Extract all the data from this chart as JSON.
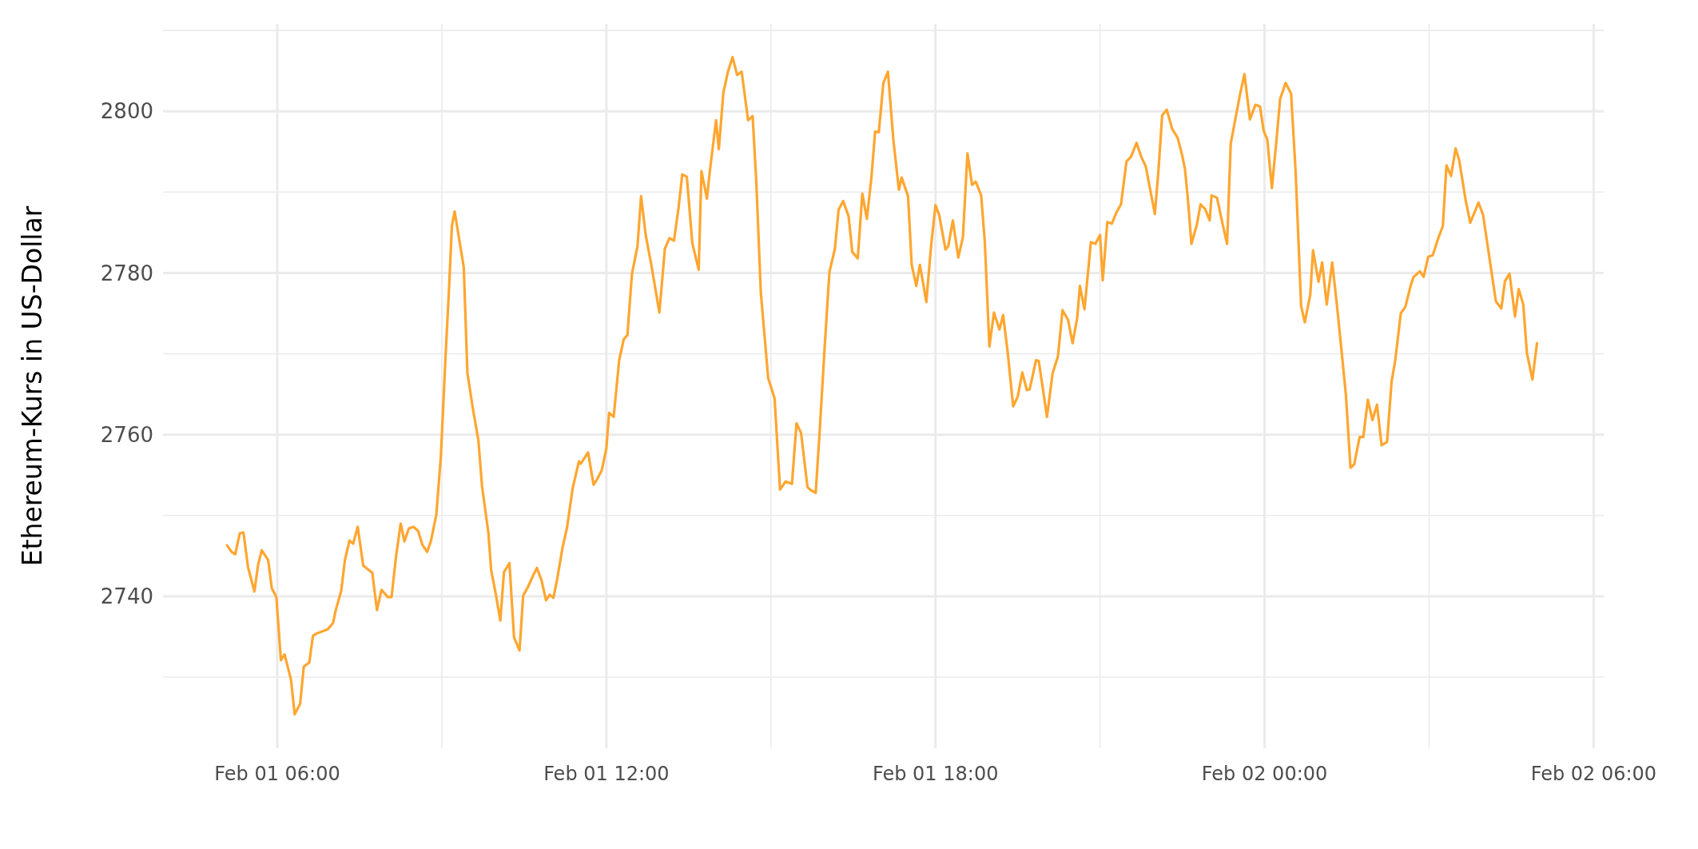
{
  "chart_data": {
    "type": "line",
    "ylabel": "Ethereum-Kurs in US-Dollar",
    "x": [
      "--02-01T05:05",
      "--02-01T05:10",
      "--02-01T05:14",
      "--02-01T05:19",
      "--02-01T05:23",
      "--02-01T05:28",
      "--02-01T05:35",
      "--02-01T05:39",
      "--02-01T05:43",
      "--02-01T05:50",
      "--02-01T05:54",
      "--02-01T05:59",
      "--02-01T06:04",
      "--02-01T06:08",
      "--02-01T06:15",
      "--02-01T06:19",
      "--02-01T06:25",
      "--02-01T06:29",
      "--02-01T06:35",
      "--02-01T06:39",
      "--02-01T06:43",
      "--02-01T06:55",
      "--02-01T07:01",
      "--02-01T07:04",
      "--02-01T07:10",
      "--02-01T07:14",
      "--02-01T07:19",
      "--02-01T07:23",
      "--02-01T07:28",
      "--02-01T07:34",
      "--02-01T07:44",
      "--02-01T07:49",
      "--02-01T07:54",
      "--02-01T08:01",
      "--02-01T08:05",
      "--02-01T08:10",
      "--02-01T08:15",
      "--02-01T08:19",
      "--02-01T08:24",
      "--02-01T08:29",
      "--02-01T08:34",
      "--02-01T08:39",
      "--02-01T08:44",
      "--02-01T08:48",
      "--02-01T08:54",
      "--02-01T08:59",
      "--02-01T09:04",
      "--02-01T09:08",
      "--02-01T09:11",
      "--02-01T09:14",
      "--02-01T09:24",
      "--02-01T09:28",
      "--02-01T09:34",
      "--02-01T09:40",
      "--02-01T09:44",
      "--02-01T09:51",
      "--02-01T09:54",
      "--02-01T09:59",
      "--02-01T10:04",
      "--02-01T10:08",
      "--02-01T10:14",
      "--02-01T10:19",
      "--02-01T10:25",
      "--02-01T10:29",
      "--02-01T10:34",
      "--02-01T10:40",
      "--02-01T10:44",
      "--02-01T10:49",
      "--02-01T10:54",
      "--02-01T10:58",
      "--02-01T11:02",
      "--02-01T11:06",
      "--02-01T11:12",
      "--02-01T11:17",
      "--02-01T11:23",
      "--02-01T11:30",
      "--02-01T11:32",
      "--02-01T11:40",
      "--02-01T11:46",
      "--02-01T11:50",
      "--02-01T11:55",
      "--02-01T12:00",
      "--02-01T12:03",
      "--02-01T12:08",
      "--02-01T12:14",
      "--02-01T12:19",
      "--02-01T12:23",
      "--02-01T12:28",
      "--02-01T12:34",
      "--02-01T12:38",
      "--02-01T12:43",
      "--02-01T12:49",
      "--02-01T12:58",
      "--02-01T13:04",
      "--02-01T13:09",
      "--02-01T13:14",
      "--02-01T13:19",
      "--02-01T13:23",
      "--02-01T13:28",
      "--02-01T13:34",
      "--02-01T13:41",
      "--02-01T13:44",
      "--02-01T13:50",
      "--02-01T13:53",
      "--02-01T14:00",
      "--02-01T14:03",
      "--02-01T14:08",
      "--02-01T14:13",
      "--02-01T14:18",
      "--02-01T14:23",
      "--02-01T14:28",
      "--02-01T14:35",
      "--02-01T14:40",
      "--02-01T14:44",
      "--02-01T14:49",
      "--02-01T14:57",
      "--02-01T15:04",
      "--02-01T15:10",
      "--02-01T15:16",
      "--02-01T15:23",
      "--02-01T15:28",
      "--02-01T15:33",
      "--02-01T15:40",
      "--02-01T15:44",
      "--02-01T15:49",
      "--02-01T15:53",
      "--02-01T15:59",
      "--02-01T16:04",
      "--02-01T16:10",
      "--02-01T16:14",
      "--02-01T16:19",
      "--02-01T16:25",
      "--02-01T16:29",
      "--02-01T16:35",
      "--02-01T16:40",
      "--02-01T16:45",
      "--02-01T16:50",
      "--02-01T16:54",
      "--02-01T16:58",
      "--02-01T17:03",
      "--02-01T17:08",
      "--02-01T17:14",
      "--02-01T17:20",
      "--02-01T17:23",
      "--02-01T17:30",
      "--02-01T17:34",
      "--02-01T17:39",
      "--02-01T17:43",
      "--02-01T17:50",
      "--02-01T17:55",
      "--02-01T18:00",
      "--02-01T18:04",
      "--02-01T18:11",
      "--02-01T18:14",
      "--02-01T18:19",
      "--02-01T18:25",
      "--02-01T18:30",
      "--02-01T18:35",
      "--02-01T18:40",
      "--02-01T18:44",
      "--02-01T18:50",
      "--02-01T18:54",
      "--02-01T18:59",
      "--02-01T19:04",
      "--02-01T19:10",
      "--02-01T19:14",
      "--02-01T19:19",
      "--02-01T19:25",
      "--02-01T19:30",
      "--02-01T19:35",
      "--02-01T19:40",
      "--02-01T19:43",
      "--02-01T19:50",
      "--02-01T19:53",
      "--02-01T20:02",
      "--02-01T20:08",
      "--02-01T20:14",
      "--02-01T20:19",
      "--02-01T20:25",
      "--02-01T20:30",
      "--02-01T20:35",
      "--02-01T20:38",
      "--02-01T20:43",
      "--02-01T20:50",
      "--02-01T20:55",
      "--02-01T21:00",
      "--02-01T21:03",
      "--02-01T21:08",
      "--02-01T21:13",
      "--02-01T21:18",
      "--02-01T21:23",
      "--02-01T21:29",
      "--02-01T21:34",
      "--02-01T21:40",
      "--02-01T21:45",
      "--02-01T21:50",
      "--02-01T22:00",
      "--02-01T22:04",
      "--02-01T22:08",
      "--02-01T22:13",
      "--02-01T22:19",
      "--02-01T22:25",
      "--02-01T22:30",
      "--02-01T22:33",
      "--02-01T22:36",
      "--02-01T22:40",
      "--02-01T22:46",
      "--02-01T22:50",
      "--02-01T22:55",
      "--02-01T23:00",
      "--02-01T23:02",
      "--02-01T23:08",
      "--02-01T23:14",
      "--02-01T23:19",
      "--02-01T23:23",
      "--02-01T23:28",
      "--02-01T23:33",
      "--02-01T23:38",
      "--02-01T23:44",
      "--02-01T23:50",
      "--02-01T23:55",
      "--02-01T23:59",
      "--02-02T00:03",
      "--02-02T00:08",
      "--02-02T00:13",
      "--02-02T00:17",
      "--02-02T00:23",
      "--02-02T00:29",
      "--02-02T00:34",
      "--02-02T00:40",
      "--02-02T00:44",
      "--02-02T00:50",
      "--02-02T00:53",
      "--02-02T00:59",
      "--02-02T01:03",
      "--02-02T01:08",
      "--02-02T01:14",
      "--02-02T01:19",
      "--02-02T01:24",
      "--02-02T01:29",
      "--02-02T01:34",
      "--02-02T01:38",
      "--02-02T01:44",
      "--02-02T01:48",
      "--02-02T01:53",
      "--02-02T01:58",
      "--02-02T02:03",
      "--02-02T02:08",
      "--02-02T02:14",
      "--02-02T02:19",
      "--02-02T02:23",
      "--02-02T02:29",
      "--02-02T02:34",
      "--02-02T02:40",
      "--02-02T02:43",
      "--02-02T02:50",
      "--02-02T02:54",
      "--02-02T02:59",
      "--02-02T03:04",
      "--02-02T03:10",
      "--02-02T03:15",
      "--02-02T03:19",
      "--02-02T03:24",
      "--02-02T03:29",
      "--02-02T03:33",
      "--02-02T03:40",
      "--02-02T03:45",
      "--02-02T03:54",
      "--02-02T03:59",
      "--02-02T04:07",
      "--02-02T04:13",
      "--02-02T04:19",
      "--02-02T04:23",
      "--02-02T04:28",
      "--02-02T04:34",
      "--02-02T04:38",
      "--02-02T04:43",
      "--02-02T04:47",
      "--02-02T04:53",
      "--02-02T04:58"
    ],
    "series": [
      {
        "color": "#ffa630",
        "values": [
          2746.3,
          2745.5,
          2745.2,
          2747.8,
          2747.9,
          2743.6,
          2740.6,
          2743.9,
          2745.7,
          2744.5,
          2741,
          2739.9,
          2732.1,
          2732.8,
          2729.7,
          2725.4,
          2726.7,
          2731.3,
          2731.8,
          2735.1,
          2735.4,
          2735.9,
          2736.7,
          2738.3,
          2740.7,
          2744.5,
          2746.9,
          2746.5,
          2748.6,
          2743.8,
          2742.9,
          2738.3,
          2740.8,
          2739.9,
          2739.9,
          2745,
          2749,
          2746.8,
          2748.4,
          2748.6,
          2748.1,
          2746.3,
          2745.5,
          2746.8,
          2750.1,
          2757.4,
          2769.5,
          2778.3,
          2785.8,
          2787.6,
          2780.7,
          2767.6,
          2763.2,
          2759.3,
          2753.6,
          2747.8,
          2743.2,
          2740.3,
          2737,
          2743,
          2744.1,
          2734.9,
          2733.3,
          2740.1,
          2741.1,
          2742.6,
          2743.5,
          2742,
          2739.5,
          2740.2,
          2739.8,
          2742,
          2746,
          2748.5,
          2753.3,
          2756.7,
          2756.4,
          2757.8,
          2753.8,
          2754.5,
          2755.6,
          2758.3,
          2762.7,
          2762.2,
          2769.2,
          2771.8,
          2772.3,
          2779.9,
          2783.3,
          2789.5,
          2784.7,
          2781.1,
          2775.1,
          2783,
          2784.3,
          2784,
          2788.1,
          2792.2,
          2791.9,
          2783.7,
          2780.4,
          2792.6,
          2789.2,
          2792.4,
          2798.9,
          2795.3,
          2802.3,
          2804.9,
          2806.7,
          2804.5,
          2804.9,
          2798.9,
          2799.4,
          2791.3,
          2777.5,
          2767,
          2764.5,
          2753.2,
          2754.2,
          2753.9,
          2761.4,
          2760.2,
          2753.5,
          2753.1,
          2752.8,
          2759.8,
          2771.2,
          2780.1,
          2783,
          2787.8,
          2788.9,
          2787,
          2782.6,
          2781.8,
          2789.8,
          2786.7,
          2791.9,
          2797.5,
          2797.4,
          2803.5,
          2804.9,
          2796.4,
          2790.3,
          2791.8,
          2789.5,
          2781,
          2778.4,
          2781,
          2776.4,
          2783.1,
          2788.4,
          2787.2,
          2782.9,
          2783.3,
          2786.5,
          2781.9,
          2784.4,
          2794.8,
          2790.9,
          2791.3,
          2789.6,
          2783.8,
          2770.9,
          2775.1,
          2773,
          2774.8,
          2770.2,
          2763.5,
          2764.7,
          2767.7,
          2765.5,
          2765.6,
          2769.2,
          2769.1,
          2762.2,
          2767.5,
          2769.7,
          2775.4,
          2774.2,
          2771.3,
          2774.4,
          2778.4,
          2775.5,
          2783.8,
          2783.6,
          2784.7,
          2779.1,
          2786.3,
          2786.1,
          2787.5,
          2788.5,
          2793.8,
          2794.4,
          2796.1,
          2794.4,
          2793.2,
          2787.3,
          2792.8,
          2799.5,
          2800.2,
          2797.8,
          2796.7,
          2794.5,
          2792.8,
          2789.3,
          2783.6,
          2786,
          2788.5,
          2787.9,
          2786.5,
          2789.6,
          2789.3,
          2786.1,
          2783.6,
          2796,
          2799,
          2802,
          2804.6,
          2799,
          2800.8,
          2800.6,
          2797.6,
          2796.5,
          2790.5,
          2796.4,
          2801.5,
          2803.5,
          2802.2,
          2792.5,
          2775.9,
          2773.9,
          2777.3,
          2782.8,
          2778.9,
          2781.3,
          2776.1,
          2781.3,
          2776.2,
          2770.6,
          2764.9,
          2755.9,
          2756.3,
          2759.7,
          2759.7,
          2764.3,
          2761.8,
          2763.7,
          2758.7,
          2759.1,
          2766.6,
          2769.2,
          2775,
          2775.8,
          2778.5,
          2779.5,
          2780.2,
          2779.5,
          2782,
          2782.2,
          2784.3,
          2785.8,
          2793.3,
          2792,
          2795.4,
          2793.9,
          2789,
          2786.2,
          2788.7,
          2787.2,
          2781.1,
          2776.5,
          2775.6,
          2779,
          2779.9,
          2774.6,
          2778,
          2776.1,
          2770.1,
          2766.8,
          2771.3
        ]
      }
    ],
    "xlim": [
      "--02-01T03:55",
      "--02-02T06:11"
    ],
    "xticks": [
      {
        "value": "--02-01T06:00",
        "label": "Feb 01 06:00"
      },
      {
        "value": "--02-01T09:00",
        "label": null
      },
      {
        "value": "--02-01T12:00",
        "label": "Feb 01 12:00"
      },
      {
        "value": "--02-01T15:00",
        "label": null
      },
      {
        "value": "--02-01T18:00",
        "label": "Feb 01 18:00"
      },
      {
        "value": "--02-01T21:00",
        "label": null
      },
      {
        "value": "--02-02T00:00",
        "label": "Feb 02 00:00"
      },
      {
        "value": "--02-02T03:00",
        "label": null
      },
      {
        "value": "--02-02T06:00",
        "label": "Feb 02 06:00"
      }
    ],
    "ylim": [
      2721.2,
      2810.8
    ],
    "yticks": [
      {
        "value": 2730,
        "label": null
      },
      2740,
      {
        "value": 2750,
        "label": null
      },
      2760,
      {
        "value": 2770,
        "label": null
      },
      2780,
      {
        "value": 2790,
        "label": null
      },
      2800,
      {
        "value": 2810,
        "label": null
      }
    ],
    "grid": true
  }
}
